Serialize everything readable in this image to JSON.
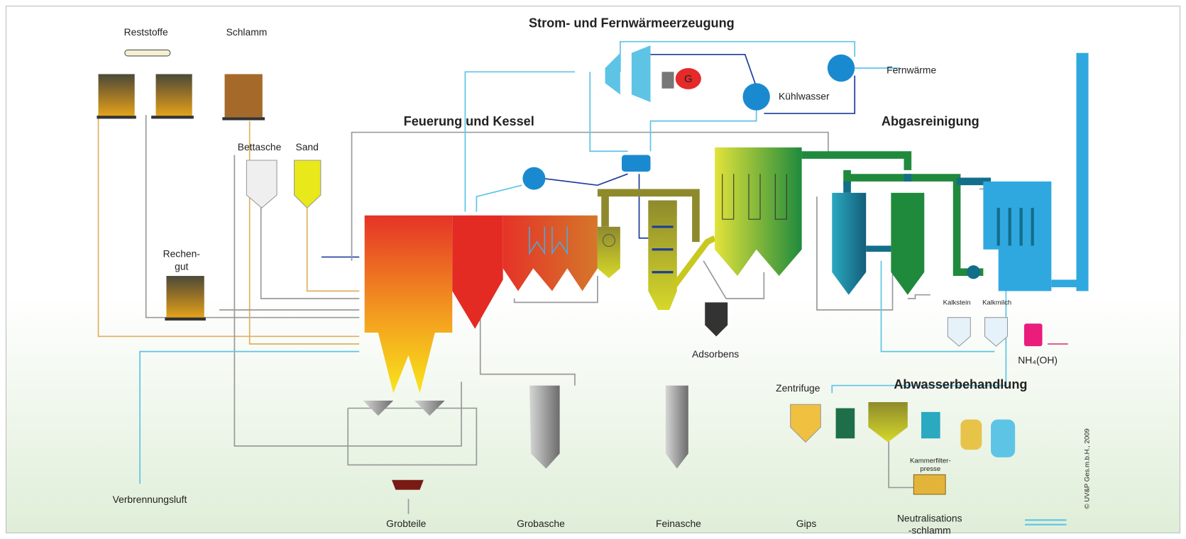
{
  "sections": {
    "power": "Strom- und Fernwärmeerzeugung",
    "furnace": "Feuerung und Kessel",
    "flue_gas": "Abgasreinigung",
    "wastewater": "Abwasserbehandlung"
  },
  "labels": {
    "reststoffe": "Reststoffe",
    "schlamm": "Schlamm",
    "bettasche": "Bettasche",
    "sand": "Sand",
    "rechengut": [
      "Rechen-",
      "gut"
    ],
    "verbrennungsluft": "Verbrennungsluft",
    "grobteile": "Grobteile",
    "grobasche": "Grobasche",
    "feinasche": "Feinasche",
    "gips": "Gips",
    "neutralisationsschlamm": [
      "Neutralisations",
      "-schlamm"
    ],
    "adsorbens": "Adsorbens",
    "zentrifuge": "Zentrifuge",
    "kammerfilterpresse": [
      "Kammerfilter-",
      "presse"
    ],
    "kalkstein": "Kalkstein",
    "kalkmilch": "Kalkmilch",
    "ammonia": "NH₄(OH)",
    "fernwaerme": "Fernwärme",
    "kuehlwasser": "Kühlwasser",
    "generator": "G"
  },
  "copyright": "© UV&P Ges.m.b.H., 2009"
}
